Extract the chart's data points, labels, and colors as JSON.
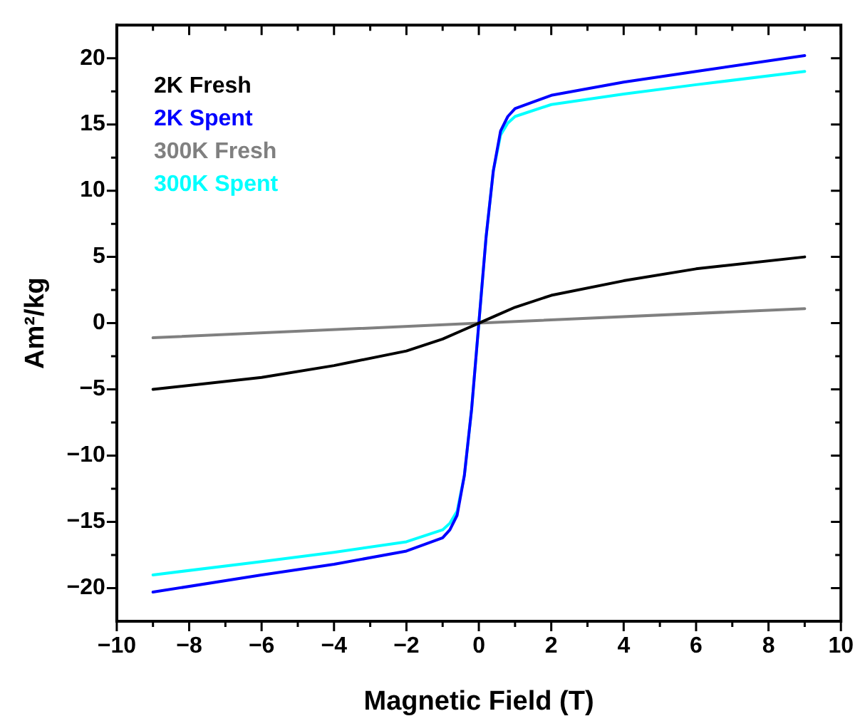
{
  "chart_data": {
    "type": "line",
    "xlabel": "Magnetic Field (T)",
    "ylabel": "Am²/kg",
    "xlim": [
      -10,
      10
    ],
    "ylim": [
      -22.5,
      22.5
    ],
    "xticks": [
      -10,
      {
        "value": -9,
        "label": null
      },
      -8,
      {
        "value": -7,
        "label": null
      },
      -6,
      {
        "value": -5,
        "label": null
      },
      -4,
      {
        "value": -3,
        "label": null
      },
      -2,
      {
        "value": -1,
        "label": null
      },
      0,
      {
        "value": 1,
        "label": null
      },
      2,
      {
        "value": 3,
        "label": null
      },
      4,
      {
        "value": 5,
        "label": null
      },
      6,
      {
        "value": 7,
        "label": null
      },
      8,
      {
        "value": 9,
        "label": null
      },
      10
    ],
    "yticks": [
      {
        "value": -20,
        "label": "−20"
      },
      {
        "value": -17.5,
        "label": null
      },
      {
        "value": -15,
        "label": "−15"
      },
      {
        "value": -12.5,
        "label": null
      },
      {
        "value": -10,
        "label": "−10"
      },
      {
        "value": -7.5,
        "label": null
      },
      {
        "value": -5,
        "label": "−5"
      },
      {
        "value": -2.5,
        "label": null
      },
      0,
      {
        "value": 2.5,
        "label": null
      },
      5,
      {
        "value": 7.5,
        "label": null
      },
      10,
      {
        "value": 12.5,
        "label": null
      },
      15,
      {
        "value": 17.5,
        "label": null
      },
      20
    ],
    "grid": false,
    "legend": "top left",
    "marker": "none",
    "line_style": "solid",
    "series": [
      {
        "name": "2K Fresh",
        "color": "#000000",
        "x": [
          -9,
          -6,
          -4,
          -2,
          -1,
          -0.5,
          0,
          0.5,
          1,
          2,
          4,
          6,
          9
        ],
        "values": [
          -5.0,
          -4.1,
          -3.2,
          -2.1,
          -1.2,
          -0.6,
          0,
          0.6,
          1.2,
          2.1,
          3.2,
          4.1,
          5.0
        ]
      },
      {
        "name": "2K Spent",
        "color": "#0000ff",
        "x": [
          -9,
          -6,
          -4,
          -2,
          -1,
          -0.8,
          -0.6,
          -0.4,
          -0.2,
          0,
          0.2,
          0.4,
          0.6,
          0.8,
          1,
          2,
          4,
          6,
          9
        ],
        "values": [
          -20.3,
          -19.0,
          -18.2,
          -17.2,
          -16.2,
          -15.6,
          -14.5,
          -11.5,
          -6.5,
          0,
          6.5,
          11.5,
          14.5,
          15.6,
          16.2,
          17.2,
          18.2,
          19.0,
          20.2
        ]
      },
      {
        "name": "300K Fresh",
        "color": "#808080",
        "x": [
          -9,
          0,
          9
        ],
        "values": [
          -1.1,
          0,
          1.1
        ]
      },
      {
        "name": "300K Spent",
        "color": "#00ffff",
        "x": [
          -9,
          -6,
          -4,
          -2,
          -1,
          -0.8,
          -0.6,
          -0.4,
          -0.2,
          0,
          0.2,
          0.4,
          0.6,
          0.8,
          1,
          2,
          4,
          6,
          9
        ],
        "values": [
          -19.0,
          -18.0,
          -17.3,
          -16.5,
          -15.6,
          -15.1,
          -14.2,
          -11.5,
          -6.5,
          0,
          6.5,
          11.5,
          14.2,
          15.1,
          15.6,
          16.5,
          17.3,
          18.0,
          19.0
        ]
      }
    ]
  }
}
